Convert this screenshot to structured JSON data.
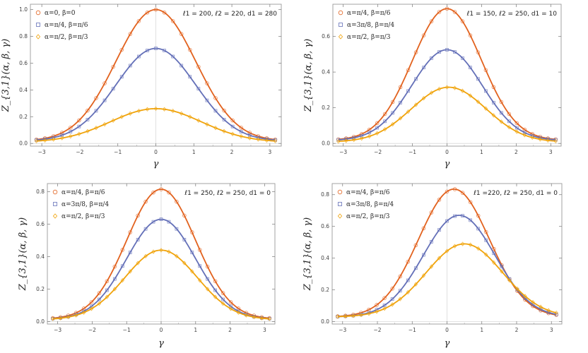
{
  "colors": {
    "series0": "#e2621e",
    "series1": "#6470b8",
    "series2": "#f0a30a",
    "frame": "#9a9a9a",
    "grid": "#d8d8d8"
  },
  "chart_data": [
    {
      "type": "line",
      "xlabel": "γ",
      "ylabel": "Z_{3,1}(α, β, γ)",
      "annotation": "ℓ1 = 200, ℓ2 = 220, d1 = 280",
      "xlim": [
        -3.3,
        3.3
      ],
      "ylim": [
        -0.02,
        1.04
      ],
      "xticks": [
        -3,
        -2,
        -1,
        0,
        1,
        2,
        3
      ],
      "yticks": [
        0.0,
        0.2,
        0.4,
        0.6,
        0.8,
        1.0
      ],
      "ytick_labels": [
        "0.0",
        "0.2",
        "0.4",
        "0.6",
        "0.8",
        "1.0"
      ],
      "series": [
        {
          "name": "α=0, β=0",
          "marker": "circle",
          "peak": 1.0,
          "center": 0.0,
          "width": 1.05,
          "tail": 0.018
        },
        {
          "name": "α=π/4, β=π/6",
          "marker": "square",
          "peak": 0.71,
          "center": 0.0,
          "width": 1.05,
          "tail": 0.018
        },
        {
          "name": "α=π/2, β=π/3",
          "marker": "diamond",
          "peak": 0.26,
          "center": 0.0,
          "width": 1.2,
          "tail": 0.01
        }
      ]
    },
    {
      "type": "line",
      "xlabel": "γ",
      "ylabel": "Z_{3,1}(α, β, γ)",
      "annotation": "ℓ1 = 150, ℓ2 = 250, d1 = 10",
      "xlim": [
        -3.3,
        3.3
      ],
      "ylim": [
        -0.015,
        0.78
      ],
      "xticks": [
        -3,
        -2,
        -1,
        0,
        1,
        2,
        3
      ],
      "yticks": [
        0.0,
        0.2,
        0.4,
        0.6
      ],
      "ytick_labels": [
        "0.0",
        "0.2",
        "0.4",
        "0.6"
      ],
      "series": [
        {
          "name": "α=π/4, β=π/6",
          "marker": "circle",
          "peak": 0.755,
          "center": 0.0,
          "width": 1.0,
          "tail": 0.018
        },
        {
          "name": "α=3π/8, β=π/4",
          "marker": "square",
          "peak": 0.525,
          "center": 0.0,
          "width": 1.02,
          "tail": 0.016
        },
        {
          "name": "α=π/2, β=π/3",
          "marker": "diamond",
          "peak": 0.315,
          "center": 0.05,
          "width": 1.08,
          "tail": 0.008
        }
      ]
    },
    {
      "type": "line",
      "xlabel": "γ",
      "ylabel": "Z_{3,1}(α, β, γ)",
      "annotation": "ℓ1 = 250, ℓ2 = 250, d1 = 0",
      "xlim": [
        -3.3,
        3.3
      ],
      "ylim": [
        -0.015,
        0.85
      ],
      "xticks": [
        -3,
        -2,
        -1,
        0,
        1,
        2,
        3
      ],
      "yticks": [
        0.0,
        0.2,
        0.4,
        0.6,
        0.8
      ],
      "ytick_labels": [
        "0.0",
        "0.2",
        "0.4",
        "0.6",
        "0.8"
      ],
      "series": [
        {
          "name": "α=π/4, β=π/6",
          "marker": "circle",
          "peak": 0.815,
          "center": 0.0,
          "width": 1.0,
          "tail": 0.016
        },
        {
          "name": "α=3π/8, β=π/4",
          "marker": "square",
          "peak": 0.63,
          "center": 0.0,
          "width": 1.0,
          "tail": 0.014
        },
        {
          "name": "α=π/2, β=π/3",
          "marker": "diamond",
          "peak": 0.44,
          "center": 0.0,
          "width": 1.05,
          "tail": 0.012
        }
      ]
    },
    {
      "type": "line",
      "xlabel": "γ",
      "ylabel": "Z_{3,1}(α, β, γ)",
      "annotation": "ℓ1 =220, ℓ2 = 250, d1 = 0",
      "xlim": [
        -3.3,
        3.3
      ],
      "ylim": [
        -0.015,
        0.87
      ],
      "xticks": [
        -3,
        -2,
        -1,
        0,
        1,
        2,
        3
      ],
      "yticks": [
        0.0,
        0.2,
        0.4,
        0.6,
        0.8
      ],
      "ytick_labels": [
        "0.0",
        "0.2",
        "0.4",
        "0.6",
        "0.8"
      ],
      "series": [
        {
          "name": "α=π/4, β=π/6",
          "marker": "circle",
          "peak": 0.835,
          "center": 0.2,
          "width": 1.02,
          "tail": 0.03
        },
        {
          "name": "α=3π/8, β=π/4",
          "marker": "square",
          "peak": 0.67,
          "center": 0.35,
          "width": 1.03,
          "tail": 0.03
        },
        {
          "name": "α=π/2, β=π/3",
          "marker": "diamond",
          "peak": 0.49,
          "center": 0.5,
          "width": 1.1,
          "tail": 0.03
        }
      ]
    }
  ]
}
